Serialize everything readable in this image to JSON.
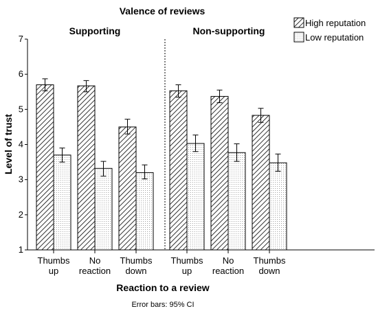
{
  "chart_data": {
    "type": "bar",
    "title": "Valence of reviews",
    "xlabel": "Reaction to a review",
    "ylabel": "Level of trust",
    "note": "Error bars: 95% CI",
    "ylim": [
      1,
      7
    ],
    "yticks": [
      "1",
      "2",
      "3",
      "4",
      "5",
      "6",
      "7"
    ],
    "legend": {
      "position": "top-right",
      "entries": [
        "High reputation",
        "Low reputation"
      ]
    },
    "panels": [
      {
        "title": "Supporting",
        "categories": [
          [
            "Thumbs",
            "up"
          ],
          [
            "No",
            "reaction"
          ],
          [
            "Thumbs",
            "down"
          ]
        ],
        "series": [
          {
            "name": "High reputation",
            "values": [
              5.7,
              5.67,
              4.5
            ],
            "ci_low": [
              5.53,
              5.5,
              4.3
            ],
            "ci_high": [
              5.87,
              5.82,
              4.72
            ]
          },
          {
            "name": "Low reputation",
            "values": [
              3.7,
              3.32,
              3.2
            ],
            "ci_low": [
              3.5,
              3.1,
              3.02
            ],
            "ci_high": [
              3.9,
              3.52,
              3.42
            ]
          }
        ]
      },
      {
        "title": "Non-supporting",
        "categories": [
          [
            "Thumbs",
            "up"
          ],
          [
            "No",
            "reaction"
          ],
          [
            "Thumbs",
            "down"
          ]
        ],
        "series": [
          {
            "name": "High reputation",
            "values": [
              5.53,
              5.37,
              4.83
            ],
            "ci_low": [
              5.35,
              5.19,
              4.63
            ],
            "ci_high": [
              5.7,
              5.55,
              5.03
            ]
          },
          {
            "name": "Low reputation",
            "values": [
              4.03,
              3.77,
              3.48
            ],
            "ci_low": [
              3.8,
              3.52,
              3.24
            ],
            "ci_high": [
              4.27,
              4.02,
              3.73
            ]
          }
        ]
      }
    ],
    "colors": {
      "bar_fill": "#ffffff",
      "bar_stroke": "#000000",
      "high_pattern": "diagonal-hatch",
      "low_pattern": "dots"
    }
  }
}
